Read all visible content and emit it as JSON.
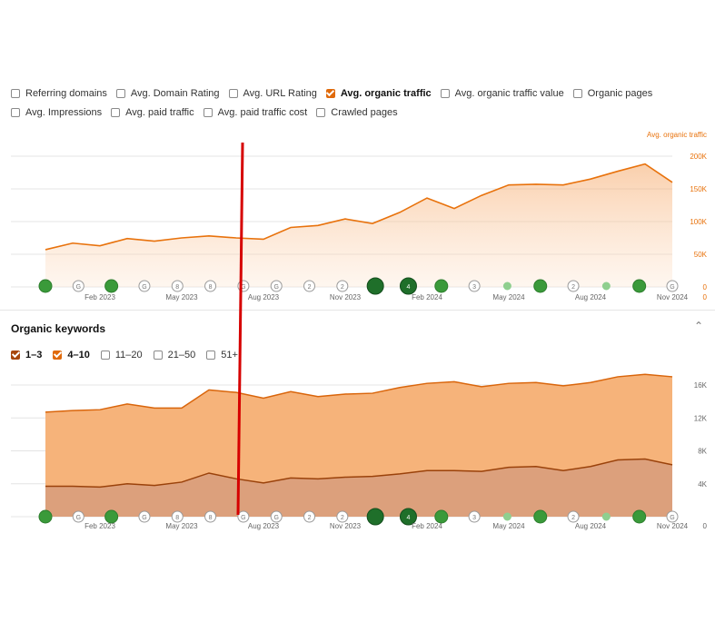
{
  "metrics": {
    "row1": [
      {
        "label": "Referring domains",
        "checked": false
      },
      {
        "label": "Avg. Domain Rating",
        "checked": false
      },
      {
        "label": "Avg. URL Rating",
        "checked": false
      },
      {
        "label": "Avg. organic traffic",
        "checked": true
      },
      {
        "label": "Avg. organic traffic value",
        "checked": false
      },
      {
        "label": "Organic pages",
        "checked": false
      }
    ],
    "row2": [
      {
        "label": "Avg. Impressions",
        "checked": false
      },
      {
        "label": "Avg. paid traffic",
        "checked": false
      },
      {
        "label": "Avg. paid traffic cost",
        "checked": false
      },
      {
        "label": "Crawled pages",
        "checked": false
      }
    ]
  },
  "colors": {
    "accent": "#e8720c",
    "check": "#e06a0b",
    "check_dark": "#a8470b",
    "marker_green": "#3a9a3a",
    "marker_dark": "#1f6f2a",
    "red_line": "#d60000"
  },
  "keywords": {
    "title": "Organic keywords",
    "collapse_icon": "chevron-up-icon",
    "filters": [
      {
        "label": "1–3",
        "checked": true,
        "color": "#a8470b"
      },
      {
        "label": "4–10",
        "checked": true,
        "color": "#e06a0b"
      },
      {
        "label": "11–20",
        "checked": false
      },
      {
        "label": "21–50",
        "checked": false
      },
      {
        "label": "51+",
        "checked": false
      }
    ]
  },
  "x_labels": [
    "Feb 2023",
    "May 2023",
    "Aug 2023",
    "Nov 2023",
    "Feb 2024",
    "May 2024",
    "Aug 2024",
    "Nov 2024"
  ],
  "markers": [
    {
      "label": "",
      "type": "green"
    },
    {
      "label": "G",
      "type": "grey"
    },
    {
      "label": "",
      "type": "green"
    },
    {
      "label": "G",
      "type": "grey"
    },
    {
      "label": "8",
      "type": "grey"
    },
    {
      "label": "8",
      "type": "grey"
    },
    {
      "label": "G",
      "type": "grey"
    },
    {
      "label": "G",
      "type": "grey"
    },
    {
      "label": "2",
      "type": "grey"
    },
    {
      "label": "2",
      "type": "grey"
    },
    {
      "label": "",
      "type": "big-dark"
    },
    {
      "label": "4",
      "type": "big-dark"
    },
    {
      "label": "",
      "type": "green"
    },
    {
      "label": "3",
      "type": "grey"
    },
    {
      "label": "",
      "type": "small-light"
    },
    {
      "label": "",
      "type": "green"
    },
    {
      "label": "2",
      "type": "grey"
    },
    {
      "label": "",
      "type": "small-light"
    },
    {
      "label": "",
      "type": "green"
    },
    {
      "label": "G",
      "type": "grey"
    }
  ],
  "chart_data": [
    {
      "type": "area",
      "series_label": "Avg. organic traffic",
      "x_ticks": [
        "Feb 2023",
        "May 2023",
        "Aug 2023",
        "Nov 2023",
        "Feb 2024",
        "May 2024",
        "Aug 2024",
        "Nov 2024"
      ],
      "y_ticks": [
        "200K",
        "150K",
        "100K",
        "50K",
        "0"
      ],
      "ylim": [
        0,
        200000
      ],
      "grid": true,
      "series": [
        {
          "name": "Avg. organic traffic",
          "values": [
            57000,
            67000,
            63000,
            74000,
            70000,
            75000,
            78000,
            75000,
            73000,
            91000,
            94000,
            104000,
            97000,
            114000,
            136000,
            120000,
            140000,
            156000,
            157000,
            156000,
            165000,
            177000,
            188000,
            160000
          ]
        }
      ]
    },
    {
      "type": "area",
      "x_ticks": [
        "Feb 2023",
        "May 2023",
        "Aug 2023",
        "Nov 2023",
        "Feb 2024",
        "May 2024",
        "Aug 2024",
        "Nov 2024"
      ],
      "y_ticks": [
        "16K",
        "12K",
        "8K",
        "4K"
      ],
      "ylim": [
        0,
        16000
      ],
      "grid": true,
      "stacked": true,
      "series": [
        {
          "name": "1–3",
          "values": [
            3700,
            3700,
            3600,
            4000,
            3800,
            4200,
            5300,
            4600,
            4100,
            4700,
            4600,
            4800,
            4900,
            5200,
            5600,
            5600,
            5500,
            6000,
            6100,
            5600,
            6100,
            6900,
            7000,
            6300
          ]
        },
        {
          "name": "4–10",
          "values": [
            9000,
            9200,
            9400,
            9700,
            9400,
            9000,
            10100,
            10500,
            10300,
            10500,
            10000,
            10100,
            10100,
            10500,
            10600,
            10800,
            10300,
            10200,
            10200,
            10300,
            10200,
            10100,
            10300,
            10700
          ]
        }
      ]
    }
  ]
}
